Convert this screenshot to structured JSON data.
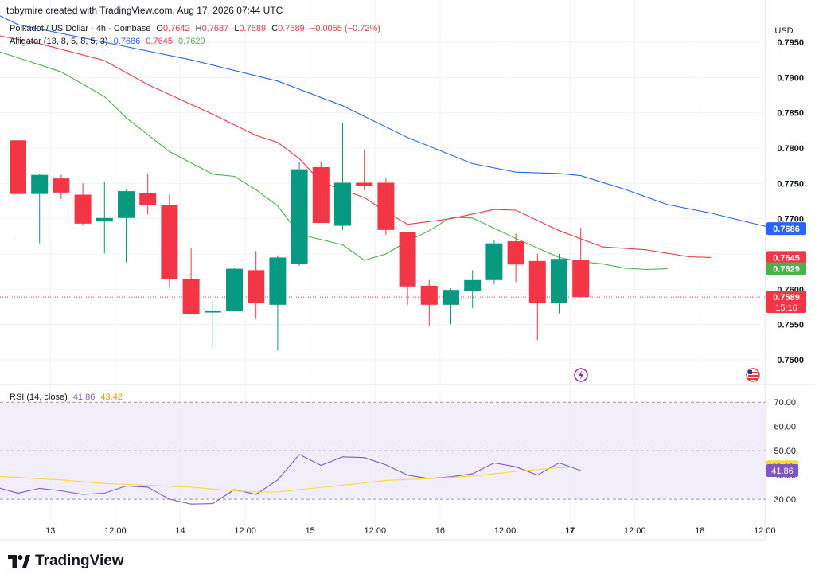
{
  "header": {
    "created_by": "tobymire created with TradingView.com, Aug 17, 2026 07:44 UTC"
  },
  "legend": {
    "symbol": "Polkadot / US Dollar · 4h · Coinbase",
    "o_label": "O",
    "o": "0.7642",
    "h_label": "H",
    "h": "0.7687",
    "l_label": "L",
    "l": "0.7589",
    "c_label": "C",
    "c": "0.7589",
    "change": "−0.0055 (−0.72%)",
    "alligator_label": "Alligator (13, 8, 5, 8, 5, 3)",
    "jaw": "0.7686",
    "teeth": "0.7645",
    "lips": "0.7629"
  },
  "rsi_legend": {
    "label": "RSI (14, close)",
    "rsi": "41.86",
    "ma": "43.42"
  },
  "currency": "USD",
  "logo_text": "TradingView",
  "colors": {
    "up": "#089981",
    "down": "#f23645",
    "jaw": "#2962ff",
    "teeth": "#f23645",
    "lips": "#4caf50",
    "rsi": "#7e57c2",
    "rsi_ma": "#fdd835",
    "rsi_band": "#ede7f6"
  },
  "chart_data": [
    {
      "type": "candlestick",
      "title": "Polkadot / US Dollar · 4h · Coinbase",
      "currency": "USD",
      "ylim": [
        0.7465,
        0.7985
      ],
      "price_ticks": [
        "0.7950",
        "0.7900",
        "0.7850",
        "0.7800",
        "0.7750",
        "0.7700",
        "0.7650",
        "0.7600",
        "0.7550",
        "0.7500"
      ],
      "x_ticks": [
        {
          "label": "13",
          "i": 1.5,
          "bold": false
        },
        {
          "label": "12:00",
          "i": 4.5,
          "bold": false
        },
        {
          "label": "14",
          "i": 7.5,
          "bold": false
        },
        {
          "label": "12:00",
          "i": 10.5,
          "bold": false
        },
        {
          "label": "15",
          "i": 13.5,
          "bold": false
        },
        {
          "label": "12:00",
          "i": 16.5,
          "bold": false
        },
        {
          "label": "16",
          "i": 19.5,
          "bold": false
        },
        {
          "label": "12:00",
          "i": 22.5,
          "bold": false
        },
        {
          "label": "17",
          "i": 25.5,
          "bold": true
        },
        {
          "label": "12:00",
          "i": 28.5,
          "bold": false
        },
        {
          "label": "18",
          "i": 31.5,
          "bold": false
        },
        {
          "label": "12:00",
          "i": 34.5,
          "bold": false
        }
      ],
      "candles": [
        {
          "o": 0.7811,
          "h": 0.7823,
          "l": 0.767,
          "c": 0.7735
        },
        {
          "o": 0.7735,
          "h": 0.7763,
          "l": 0.7665,
          "c": 0.7762
        },
        {
          "o": 0.7757,
          "h": 0.7762,
          "l": 0.7728,
          "c": 0.7737
        },
        {
          "o": 0.7734,
          "h": 0.775,
          "l": 0.769,
          "c": 0.7693
        },
        {
          "o": 0.7696,
          "h": 0.7752,
          "l": 0.7651,
          "c": 0.7701
        },
        {
          "o": 0.7701,
          "h": 0.7741,
          "l": 0.7638,
          "c": 0.7739
        },
        {
          "o": 0.7736,
          "h": 0.7764,
          "l": 0.7706,
          "c": 0.7719
        },
        {
          "o": 0.7719,
          "h": 0.7734,
          "l": 0.7603,
          "c": 0.7615
        },
        {
          "o": 0.7614,
          "h": 0.7658,
          "l": 0.7565,
          "c": 0.7565
        },
        {
          "o": 0.7567,
          "h": 0.7585,
          "l": 0.7518,
          "c": 0.757
        },
        {
          "o": 0.7569,
          "h": 0.763,
          "l": 0.7569,
          "c": 0.7629
        },
        {
          "o": 0.7627,
          "h": 0.7654,
          "l": 0.7558,
          "c": 0.758
        },
        {
          "o": 0.7578,
          "h": 0.7648,
          "l": 0.7513,
          "c": 0.7645
        },
        {
          "o": 0.7636,
          "h": 0.778,
          "l": 0.7633,
          "c": 0.777
        },
        {
          "o": 0.7773,
          "h": 0.7781,
          "l": 0.7694,
          "c": 0.7694
        },
        {
          "o": 0.769,
          "h": 0.7836,
          "l": 0.7684,
          "c": 0.7751
        },
        {
          "o": 0.7751,
          "h": 0.7798,
          "l": 0.774,
          "c": 0.7747
        },
        {
          "o": 0.7751,
          "h": 0.7758,
          "l": 0.7677,
          "c": 0.7684
        },
        {
          "o": 0.7681,
          "h": 0.7681,
          "l": 0.7578,
          "c": 0.7604
        },
        {
          "o": 0.7605,
          "h": 0.7613,
          "l": 0.7548,
          "c": 0.7578
        },
        {
          "o": 0.7578,
          "h": 0.7601,
          "l": 0.755,
          "c": 0.7599
        },
        {
          "o": 0.7598,
          "h": 0.7627,
          "l": 0.7573,
          "c": 0.7613
        },
        {
          "o": 0.7613,
          "h": 0.767,
          "l": 0.7607,
          "c": 0.7665
        },
        {
          "o": 0.7668,
          "h": 0.7679,
          "l": 0.761,
          "c": 0.7635
        },
        {
          "o": 0.764,
          "h": 0.765,
          "l": 0.7528,
          "c": 0.7581
        },
        {
          "o": 0.758,
          "h": 0.765,
          "l": 0.7566,
          "c": 0.7643
        },
        {
          "o": 0.7642,
          "h": 0.7687,
          "l": 0.7589,
          "c": 0.7589
        }
      ],
      "last_price": 0.7589,
      "countdown": "15:16",
      "alligator": {
        "jaw": {
          "name": "Jaw",
          "points": [
            [
              -1,
              0.799
            ],
            [
              0,
              0.7975
            ],
            [
              4,
              0.795
            ],
            [
              8,
              0.7925
            ],
            [
              12,
              0.7895
            ],
            [
              15,
              0.786
            ],
            [
              16,
              0.7845
            ],
            [
              18,
              0.7815
            ],
            [
              21,
              0.7778
            ],
            [
              23,
              0.7766
            ],
            [
              25,
              0.7764
            ],
            [
              26,
              0.7761
            ],
            [
              28,
              0.7742
            ],
            [
              30,
              0.772
            ],
            [
              32,
              0.7708
            ],
            [
              34,
              0.7693
            ],
            [
              35,
              0.7686
            ]
          ]
        },
        "teeth": {
          "name": "Teeth",
          "points": [
            [
              -1,
              0.796
            ],
            [
              1,
              0.7948
            ],
            [
              4,
              0.7924
            ],
            [
              6,
              0.789
            ],
            [
              9,
              0.7848
            ],
            [
              11,
              0.7818
            ],
            [
              12,
              0.7808
            ],
            [
              13,
              0.7785
            ],
            [
              14,
              0.7752
            ],
            [
              16,
              0.773
            ],
            [
              17,
              0.771
            ],
            [
              18,
              0.7692
            ],
            [
              20,
              0.77
            ],
            [
              22,
              0.7713
            ],
            [
              23,
              0.7712
            ],
            [
              25,
              0.7683
            ],
            [
              27,
              0.766
            ],
            [
              29,
              0.7656
            ],
            [
              31,
              0.7646
            ],
            [
              32,
              0.7645
            ]
          ]
        },
        "lips": {
          "name": "Lips",
          "points": [
            [
              -1,
              0.7938
            ],
            [
              0,
              0.7928
            ],
            [
              2,
              0.7908
            ],
            [
              4,
              0.7873
            ],
            [
              5,
              0.7843
            ],
            [
              7,
              0.7795
            ],
            [
              9,
              0.7763
            ],
            [
              10,
              0.776
            ],
            [
              11,
              0.7741
            ],
            [
              12,
              0.7718
            ],
            [
              13,
              0.7678
            ],
            [
              15,
              0.7663
            ],
            [
              16,
              0.7641
            ],
            [
              17,
              0.765
            ],
            [
              18,
              0.7668
            ],
            [
              19,
              0.7683
            ],
            [
              20,
              0.7702
            ],
            [
              21,
              0.7701
            ],
            [
              23,
              0.7672
            ],
            [
              25,
              0.7645
            ],
            [
              26,
              0.7639
            ],
            [
              27,
              0.7636
            ],
            [
              28,
              0.763
            ],
            [
              29,
              0.7628
            ],
            [
              30,
              0.7629
            ]
          ]
        }
      },
      "price_labels": [
        {
          "value": 0.7686,
          "text": "0.7686",
          "color": "#2962ff"
        },
        {
          "value": 0.7645,
          "text": "0.7645",
          "color": "#f23645"
        },
        {
          "value": 0.7629,
          "text": "0.7629",
          "color": "#4caf50"
        },
        {
          "value": 0.7589,
          "text": "0.7589",
          "color": "#f23645"
        }
      ]
    },
    {
      "type": "line",
      "title": "RSI (14, close)",
      "ylim": [
        22.5,
        75
      ],
      "ticks": [
        "70.00",
        "60.00",
        "50.00",
        "40.00",
        "30.00"
      ],
      "levels": [
        70,
        50,
        30
      ],
      "series": [
        {
          "name": "RSI",
          "values": [
            [
              -1,
              35
            ],
            [
              0,
              32.5
            ],
            [
              1,
              34.5
            ],
            [
              2,
              33.5
            ],
            [
              3,
              32
            ],
            [
              4,
              32.5
            ],
            [
              5,
              35.5
            ],
            [
              6,
              35
            ],
            [
              7,
              30
            ],
            [
              8,
              28
            ],
            [
              9,
              28.2
            ],
            [
              10,
              34
            ],
            [
              11,
              32
            ],
            [
              12,
              38
            ],
            [
              13,
              48.5
            ],
            [
              14,
              44
            ],
            [
              15,
              47.5
            ],
            [
              16,
              47.2
            ],
            [
              17,
              44.2
            ],
            [
              18,
              40
            ],
            [
              19,
              38.5
            ],
            [
              20,
              39.3
            ],
            [
              21,
              40.5
            ],
            [
              22,
              45
            ],
            [
              23,
              43.4
            ],
            [
              24,
              40
            ],
            [
              25,
              45
            ],
            [
              26,
              41.86
            ]
          ]
        },
        {
          "name": "MA",
          "values": [
            [
              -1,
              39.5
            ],
            [
              0,
              39
            ],
            [
              2,
              38
            ],
            [
              4,
              36.5
            ],
            [
              6,
              35.8
            ],
            [
              8,
              35
            ],
            [
              9,
              34.2
            ],
            [
              10,
              33.5
            ],
            [
              11,
              33
            ],
            [
              12,
              33
            ],
            [
              13,
              34
            ],
            [
              15,
              35.8
            ],
            [
              17,
              37.8
            ],
            [
              19,
              38.5
            ],
            [
              21,
              39.6
            ],
            [
              23,
              41.5
            ],
            [
              25,
              43
            ],
            [
              26,
              43.42
            ]
          ]
        }
      ],
      "last_labels": [
        {
          "value": 43.42,
          "text": "43.42",
          "color": "#fdd835",
          "text_color": "#131722"
        },
        {
          "value": 41.86,
          "text": "41.86",
          "color": "#7e57c2",
          "text_color": "#ffffff"
        }
      ]
    }
  ]
}
